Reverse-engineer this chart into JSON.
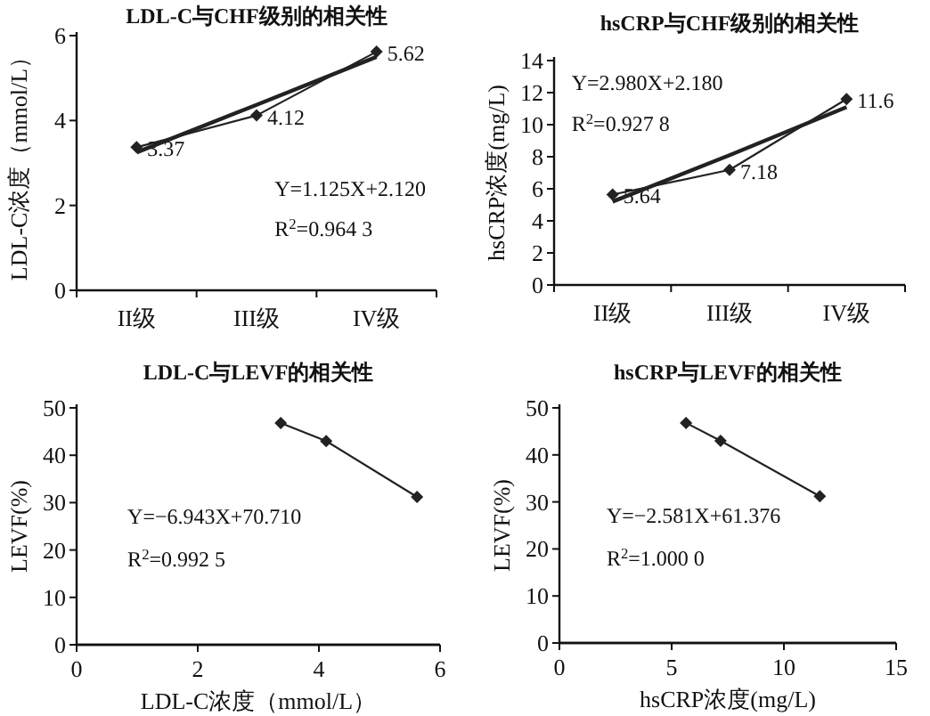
{
  "chart_data": [
    {
      "type": "line",
      "title": "LDL-C与CHF级别的相关性",
      "ylabel": "LDL-C浓度（mmol/L）",
      "categories": [
        "II级",
        "III级",
        "IV级"
      ],
      "ylim": [
        0,
        6
      ],
      "yticks": [
        0,
        2,
        4,
        6
      ],
      "grid": false,
      "line_style": "solid",
      "annotations": [
        "Y=1.125X+2.120",
        "R$^{2}$=0.964 3"
      ],
      "series": [
        {
          "color": "#222222",
          "marker": "diamond",
          "values": [
            3.37,
            4.12,
            5.62
          ],
          "value_labels": [
            "3.37",
            "4.12",
            "5.62"
          ]
        },
        {
          "color": "#222222",
          "marker": "none",
          "values": [
            3.25,
            4.37,
            5.5
          ]
        }
      ]
    },
    {
      "type": "line",
      "title": "hsCRP与CHF级别的相关性",
      "ylabel": "hsCRP浓度(mg/L)",
      "categories": [
        "II级",
        "III级",
        "IV级"
      ],
      "ylim": [
        0,
        14
      ],
      "yticks": [
        0,
        2,
        4,
        6,
        8,
        10,
        12,
        14
      ],
      "grid": false,
      "line_style": "solid",
      "annotations": [
        "Y=2.980X+2.180",
        "R$^{2}$=0.927 8"
      ],
      "series": [
        {
          "color": "#222222",
          "marker": "diamond",
          "values": [
            5.64,
            7.18,
            11.6
          ],
          "value_labels": [
            "5.64",
            "7.18",
            "11.6"
          ]
        },
        {
          "color": "#222222",
          "marker": "none",
          "values": [
            5.2,
            8.1,
            11.1
          ]
        }
      ]
    },
    {
      "type": "line",
      "title": "LDL-C与LEVF的相关性",
      "xlabel": "LDL-C浓度（mmol/L）",
      "ylabel": "LEVF(%)",
      "xlim": [
        0,
        6
      ],
      "xticks": [
        0,
        2,
        4,
        6
      ],
      "ylim": [
        0,
        50
      ],
      "yticks": [
        0,
        10,
        20,
        30,
        40,
        50
      ],
      "grid": false,
      "line_style": "solid",
      "annotations": [
        "Y=−6.943X+70.710",
        "R$^{2}$=0.992 5"
      ],
      "series": [
        {
          "color": "#222222",
          "marker": "diamond",
          "x": [
            3.37,
            4.12,
            5.62
          ],
          "values": [
            46.8,
            43.0,
            31.2
          ]
        }
      ]
    },
    {
      "type": "line",
      "title": "hsCRP与LEVF的相关性",
      "xlabel": "hsCRP浓度(mg/L)",
      "ylabel": "LEVF(%)",
      "xlim": [
        0,
        15
      ],
      "xticks": [
        0,
        5,
        10,
        15
      ],
      "ylim": [
        0,
        50
      ],
      "yticks": [
        0,
        10,
        20,
        30,
        40,
        50
      ],
      "grid": false,
      "line_style": "solid",
      "annotations": [
        "Y=−2.581X+61.376",
        "R$^{2}$=1.000 0"
      ],
      "series": [
        {
          "color": "#222222",
          "marker": "diamond",
          "x": [
            5.64,
            7.18,
            11.6
          ],
          "values": [
            46.8,
            43.0,
            31.2
          ]
        }
      ]
    }
  ]
}
